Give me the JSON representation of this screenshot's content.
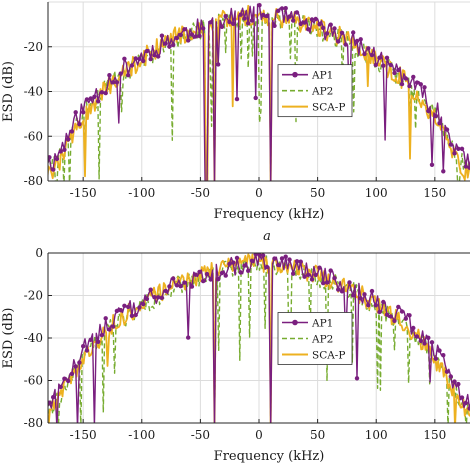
{
  "colors": {
    "AP1": "#7a1f7f",
    "AP2": "#77ac30",
    "SCA-P": "#edb120",
    "grid": "#dcdcdc",
    "axis": "#262626"
  },
  "chart_data": [
    {
      "type": "line",
      "panel_caption": "a",
      "xlabel": "Frequency (kHz)",
      "ylabel": "ESD (dB)",
      "xlim": [
        -180,
        180
      ],
      "ylim": [
        -80,
        0
      ],
      "xticks": [
        -150,
        -100,
        -50,
        0,
        50,
        100,
        150
      ],
      "yticks": [
        -80,
        -60,
        -40,
        -20
      ],
      "grid": true,
      "legend": "center-right",
      "notches_khz": [
        -45,
        -38,
        10
      ],
      "series": [
        {
          "name": "AP1",
          "style": "solid-circle",
          "x": [
            -175,
            -150,
            -125,
            -100,
            -75,
            -50,
            -25,
            0,
            25,
            50,
            75,
            100,
            125,
            150,
            175
          ],
          "y": [
            -70,
            -46,
            -32,
            -23,
            -15,
            -10,
            -6,
            -4,
            -6,
            -10,
            -15,
            -23,
            -32,
            -46,
            -70
          ]
        },
        {
          "name": "AP2",
          "style": "dashed",
          "x": [
            -175,
            -150,
            -125,
            -100,
            -75,
            -50,
            -25,
            0,
            25,
            50,
            75,
            100,
            125,
            150,
            175
          ],
          "y": [
            -72,
            -49,
            -34,
            -25,
            -16,
            -11,
            -7,
            -5,
            -7,
            -11,
            -16,
            -25,
            -34,
            -49,
            -72
          ]
        },
        {
          "name": "SCA-P",
          "style": "solid",
          "x": [
            -175,
            -150,
            -125,
            -100,
            -75,
            -50,
            -25,
            0,
            25,
            50,
            75,
            100,
            125,
            150,
            175
          ],
          "y": [
            -74,
            -50,
            -34,
            -24,
            -15,
            -10,
            -6,
            -4,
            -6,
            -10,
            -15,
            -24,
            -34,
            -50,
            -74
          ]
        }
      ]
    },
    {
      "type": "line",
      "xlabel": "Frequency (kHz)",
      "ylabel": "ESD (dB)",
      "xlim": [
        -180,
        180
      ],
      "ylim": [
        -80,
        0
      ],
      "xticks": [
        -150,
        -100,
        -50,
        0,
        50,
        100,
        150
      ],
      "yticks": [
        -80,
        -60,
        -40,
        -20,
        0
      ],
      "grid": true,
      "legend": "center-right",
      "notches_khz": [
        -38,
        10
      ],
      "series": [
        {
          "name": "AP1",
          "style": "solid-circle",
          "x": [
            -175,
            -150,
            -125,
            -100,
            -75,
            -50,
            -25,
            0,
            25,
            50,
            75,
            100,
            125,
            150,
            175
          ],
          "y": [
            -68,
            -44,
            -30,
            -22,
            -14,
            -9,
            -5,
            -3,
            -5,
            -9,
            -14,
            -22,
            -30,
            -44,
            -68
          ]
        },
        {
          "name": "AP2",
          "style": "dashed",
          "x": [
            -175,
            -150,
            -125,
            -100,
            -75,
            -50,
            -25,
            0,
            25,
            50,
            75,
            100,
            125,
            150,
            175
          ],
          "y": [
            -70,
            -47,
            -33,
            -24,
            -15,
            -10,
            -6,
            -4,
            -6,
            -10,
            -15,
            -24,
            -33,
            -47,
            -70
          ]
        },
        {
          "name": "SCA-P",
          "style": "solid",
          "x": [
            -175,
            -150,
            -125,
            -100,
            -75,
            -50,
            -25,
            0,
            25,
            50,
            75,
            100,
            125,
            150,
            175
          ],
          "y": [
            -72,
            -48,
            -32,
            -23,
            -14,
            -9,
            -5,
            -3,
            -5,
            -9,
            -14,
            -23,
            -32,
            -48,
            -72
          ]
        }
      ]
    }
  ]
}
